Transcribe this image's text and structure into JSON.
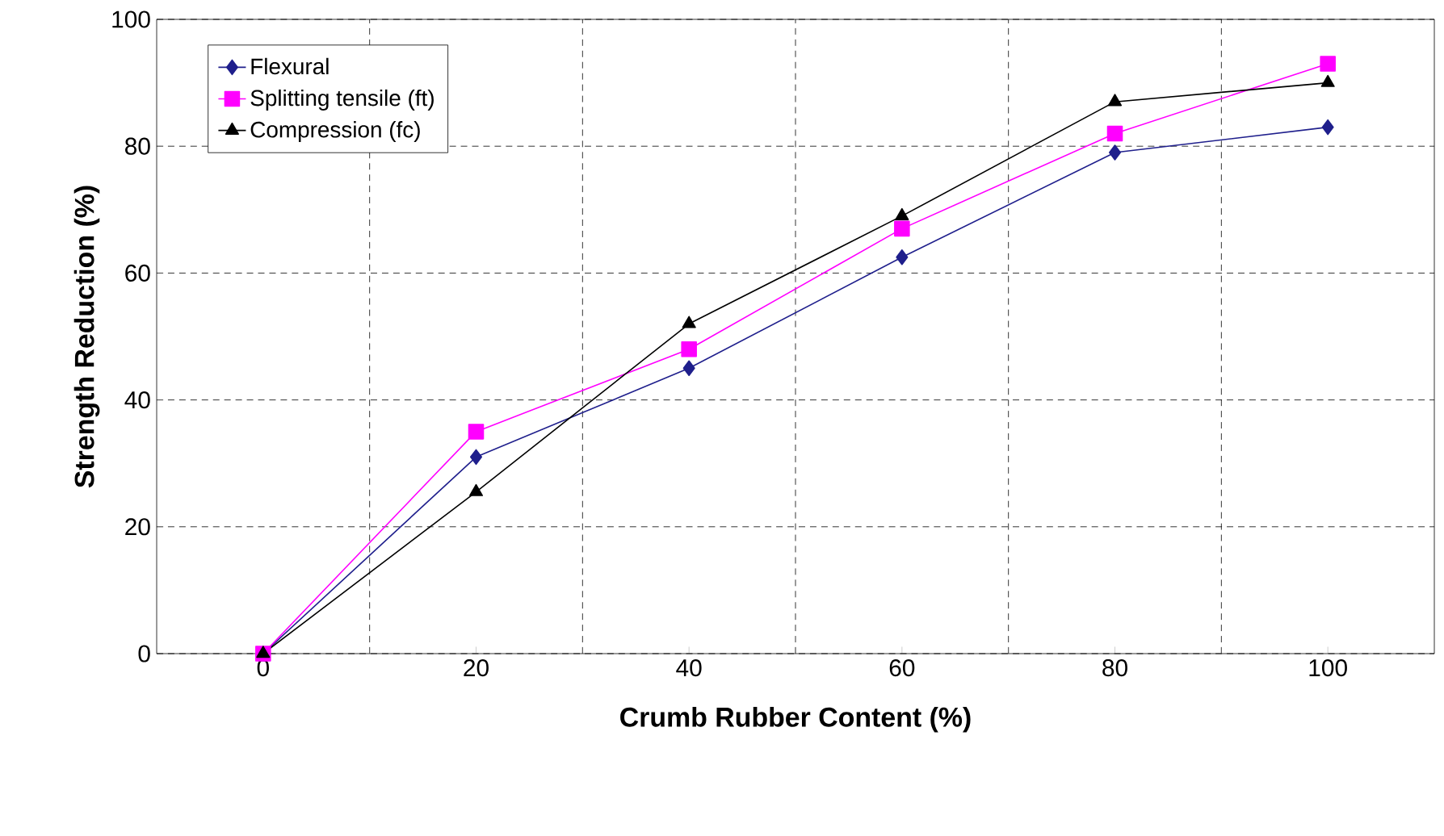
{
  "chart_data": {
    "type": "line",
    "xlabel": "Crumb Rubber Content (%)",
    "ylabel": "Strength Reduction (%)",
    "x": [
      0,
      20,
      40,
      60,
      80,
      100
    ],
    "series": [
      {
        "name": "Flexural",
        "color": "#1f1f8c",
        "marker": "diamond",
        "values": [
          0,
          31,
          45,
          62.5,
          79,
          83
        ]
      },
      {
        "name": "Splitting tensile (ft)",
        "color": "#ff00ff",
        "marker": "square",
        "values": [
          0,
          35,
          48,
          67,
          82,
          93
        ]
      },
      {
        "name": "Compression (fc)",
        "color": "#000000",
        "marker": "triangle",
        "values": [
          0,
          25.5,
          52,
          69,
          87,
          90
        ]
      }
    ],
    "xlim": [
      -10,
      110
    ],
    "ylim": [
      0,
      100
    ],
    "xticks": [
      0,
      {
        "value": 10,
        "label": null
      },
      20,
      {
        "value": 30,
        "label": null
      },
      40,
      {
        "value": 50,
        "label": null
      },
      60,
      {
        "value": 70,
        "label": null
      },
      80,
      {
        "value": 90,
        "label": null
      },
      100
    ],
    "yticks": [
      0,
      20,
      40,
      60,
      80,
      100
    ],
    "grid": true,
    "legend": "top left",
    "line_style": "solid"
  }
}
